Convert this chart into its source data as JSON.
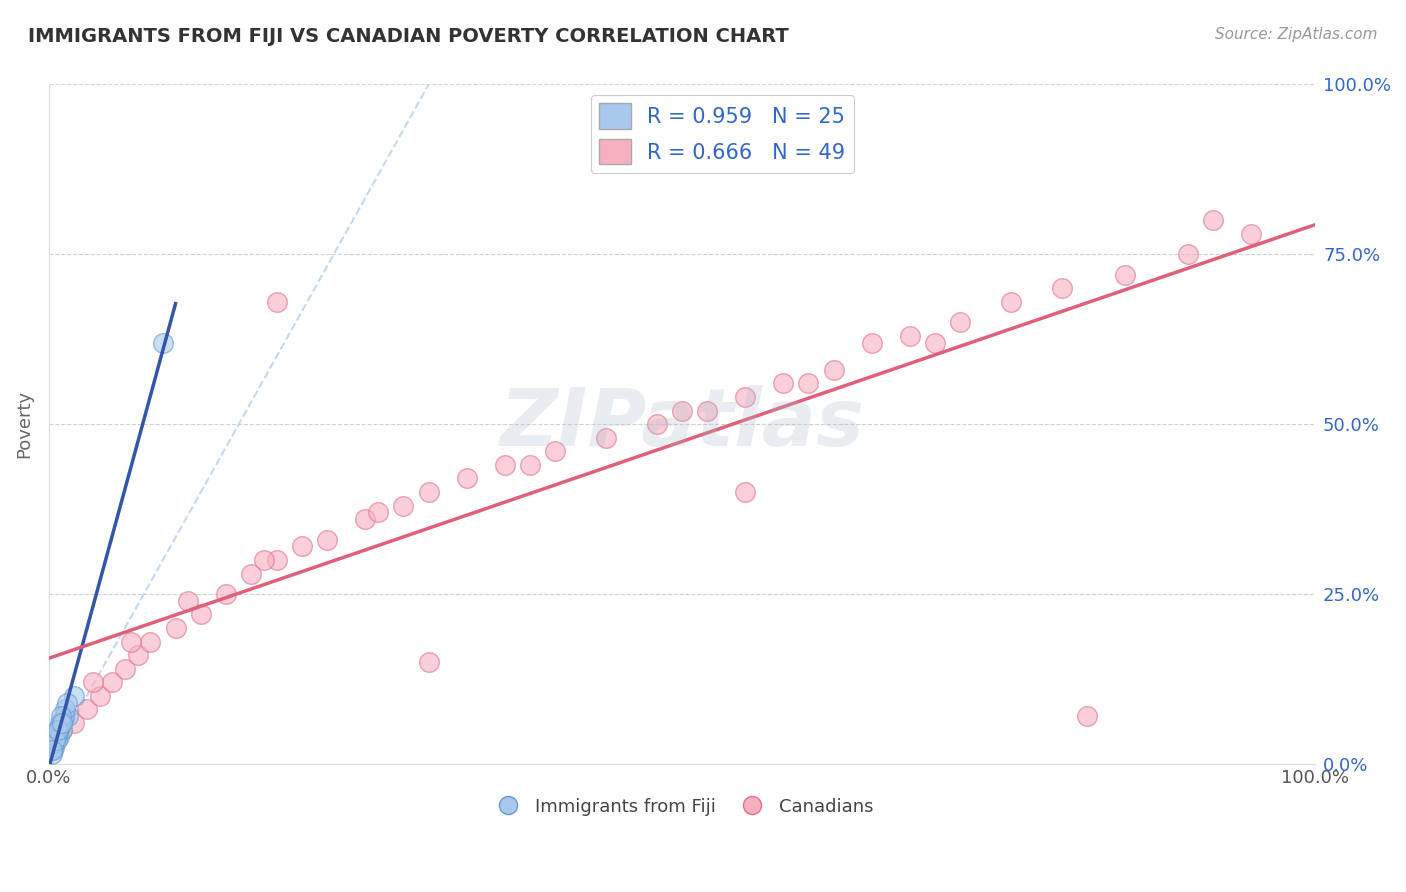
{
  "title": "IMMIGRANTS FROM FIJI VS CANADIAN POVERTY CORRELATION CHART",
  "source": "Source: ZipAtlas.com",
  "ylabel": "Poverty",
  "ytick_labels": [
    "0.0%",
    "25.0%",
    "50.0%",
    "75.0%",
    "100.0%"
  ],
  "ytick_positions": [
    0.0,
    25.0,
    50.0,
    75.0,
    100.0
  ],
  "xlim": [
    0.0,
    100.0
  ],
  "ylim": [
    0.0,
    100.0
  ],
  "blue_color": "#A8C8EE",
  "blue_edge_color": "#6699CC",
  "blue_line_color": "#3355AA",
  "pink_color": "#F8B0C0",
  "pink_edge_color": "#E07090",
  "pink_line_color": "#E0607A",
  "legend_R1": "R = 0.959",
  "legend_N1": "N = 25",
  "legend_R2": "R = 0.666",
  "legend_N2": "N = 49",
  "legend_label1": "Immigrants from Fiji",
  "legend_label2": "Canadians",
  "blue_scatter_x": [
    0.5,
    0.8,
    1.0,
    1.5,
    2.0,
    0.3,
    0.4,
    0.6,
    0.7,
    0.9,
    1.1,
    1.2,
    1.3,
    1.4,
    0.2,
    0.35,
    0.55,
    0.65,
    0.85,
    0.95,
    0.45,
    0.75,
    1.05,
    0.25,
    9.0
  ],
  "blue_scatter_y": [
    3.0,
    4.0,
    5.0,
    7.0,
    10.0,
    2.0,
    2.5,
    3.5,
    4.5,
    5.5,
    6.5,
    7.0,
    8.0,
    9.0,
    1.5,
    3.0,
    4.0,
    5.0,
    6.0,
    7.0,
    3.5,
    5.0,
    6.0,
    2.0,
    62.0
  ],
  "pink_scatter_x": [
    1.0,
    2.0,
    3.0,
    4.0,
    5.0,
    6.0,
    7.0,
    8.0,
    10.0,
    12.0,
    14.0,
    16.0,
    18.0,
    20.0,
    22.0,
    25.0,
    28.0,
    30.0,
    33.0,
    36.0,
    40.0,
    44.0,
    48.0,
    52.0,
    55.0,
    58.0,
    62.0,
    65.0,
    68.0,
    72.0,
    76.0,
    80.0,
    85.0,
    90.0,
    95.0,
    3.5,
    6.5,
    11.0,
    17.0,
    26.0,
    38.0,
    50.0,
    60.0,
    70.0,
    82.0,
    92.0,
    55.0,
    30.0,
    18.0
  ],
  "pink_scatter_y": [
    5.0,
    6.0,
    8.0,
    10.0,
    12.0,
    14.0,
    16.0,
    18.0,
    20.0,
    22.0,
    25.0,
    28.0,
    30.0,
    32.0,
    33.0,
    36.0,
    38.0,
    40.0,
    42.0,
    44.0,
    46.0,
    48.0,
    50.0,
    52.0,
    54.0,
    56.0,
    58.0,
    62.0,
    63.0,
    65.0,
    68.0,
    70.0,
    72.0,
    75.0,
    78.0,
    12.0,
    18.0,
    24.0,
    30.0,
    37.0,
    44.0,
    52.0,
    56.0,
    62.0,
    7.0,
    80.0,
    40.0,
    15.0,
    68.0
  ],
  "watermark_text": "ZIPatlas",
  "background_color": "#FFFFFF",
  "grid_color": "#CCCCCC",
  "legend_text_color": "#3366CC"
}
